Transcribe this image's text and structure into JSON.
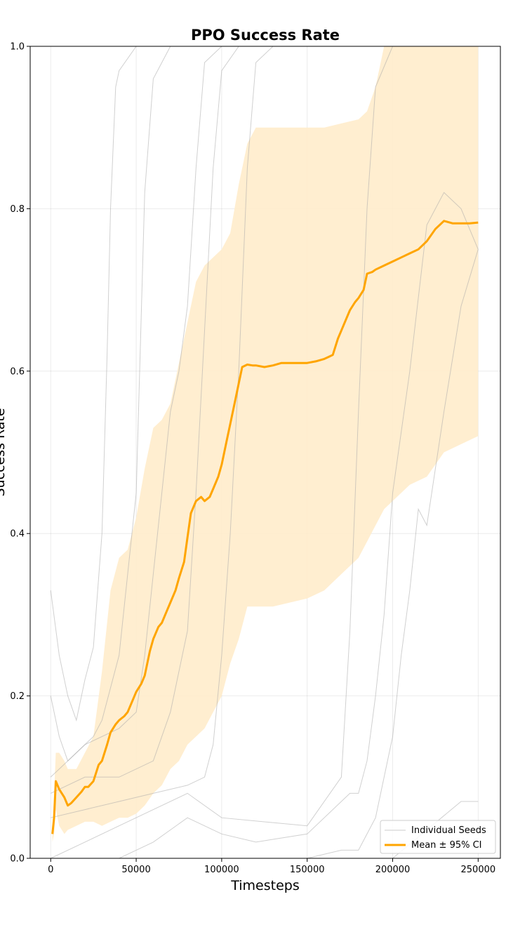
{
  "chart_data": {
    "type": "line",
    "title": "PPO Success Rate",
    "xlabel": "Timesteps",
    "ylabel": "Success Rate",
    "xlim": [
      -12000,
      263000
    ],
    "ylim": [
      0,
      1
    ],
    "xticks": [
      0,
      50000,
      100000,
      150000,
      200000,
      250000
    ],
    "xtick_labels": [
      "0",
      "50000",
      "100000",
      "150000",
      "200000",
      "250000"
    ],
    "yticks": [
      0,
      0.2,
      0.4,
      0.6,
      0.8,
      1.0
    ],
    "ytick_labels": [
      "0.0",
      "0.2",
      "0.4",
      "0.6",
      "0.8",
      "1.0"
    ],
    "grid": true,
    "legend": {
      "position": "lower-right",
      "entries": [
        "Individual Seeds",
        "Mean ± 95% CI"
      ]
    },
    "colors": {
      "mean": "#ffa500",
      "ci": "#ffeccb",
      "seeds": "#a9a9a9"
    },
    "mean": {
      "name": "Mean ± 95% CI",
      "x": [
        1000,
        2000,
        3000,
        5000,
        8000,
        10000,
        12000,
        15000,
        18000,
        20000,
        22000,
        25000,
        28000,
        30000,
        33000,
        35000,
        38000,
        40000,
        43000,
        45000,
        48000,
        50000,
        53000,
        55000,
        58000,
        60000,
        63000,
        65000,
        68000,
        70000,
        73000,
        75000,
        78000,
        80000,
        82000,
        85000,
        88000,
        90000,
        93000,
        95000,
        98000,
        100000,
        103000,
        105000,
        108000,
        110000,
        112000,
        115000,
        118000,
        120000,
        125000,
        130000,
        135000,
        140000,
        145000,
        150000,
        155000,
        160000,
        163000,
        165000,
        168000,
        170000,
        173000,
        175000,
        178000,
        180000,
        183000,
        185000,
        188000,
        190000,
        195000,
        200000,
        205000,
        210000,
        215000,
        220000,
        225000,
        230000,
        235000,
        240000,
        245000,
        250000
      ],
      "y": [
        0.03,
        0.05,
        0.095,
        0.085,
        0.075,
        0.065,
        0.068,
        0.075,
        0.082,
        0.088,
        0.088,
        0.095,
        0.115,
        0.12,
        0.14,
        0.155,
        0.165,
        0.17,
        0.175,
        0.18,
        0.195,
        0.205,
        0.215,
        0.225,
        0.255,
        0.27,
        0.285,
        0.29,
        0.305,
        0.315,
        0.33,
        0.345,
        0.365,
        0.395,
        0.425,
        0.44,
        0.445,
        0.44,
        0.445,
        0.455,
        0.47,
        0.485,
        0.515,
        0.535,
        0.565,
        0.585,
        0.605,
        0.608,
        0.607,
        0.607,
        0.605,
        0.607,
        0.61,
        0.61,
        0.61,
        0.61,
        0.612,
        0.615,
        0.618,
        0.62,
        0.64,
        0.65,
        0.665,
        0.675,
        0.685,
        0.69,
        0.7,
        0.72,
        0.722,
        0.725,
        0.73,
        0.735,
        0.74,
        0.745,
        0.75,
        0.76,
        0.775,
        0.785,
        0.782,
        0.782,
        0.782,
        0.783
      ]
    },
    "ci_band": {
      "x": [
        1000,
        2000,
        3000,
        5000,
        8000,
        10000,
        15000,
        20000,
        25000,
        30000,
        35000,
        40000,
        45000,
        50000,
        55000,
        60000,
        65000,
        70000,
        75000,
        80000,
        85000,
        90000,
        95000,
        100000,
        105000,
        110000,
        115000,
        120000,
        130000,
        140000,
        150000,
        160000,
        170000,
        180000,
        185000,
        190000,
        195000,
        200000,
        210000,
        220000,
        230000,
        240000,
        250000
      ],
      "lower": [
        0.02,
        0.03,
        0.06,
        0.04,
        0.03,
        0.035,
        0.04,
        0.045,
        0.045,
        0.04,
        0.045,
        0.05,
        0.05,
        0.055,
        0.065,
        0.08,
        0.09,
        0.11,
        0.12,
        0.14,
        0.15,
        0.16,
        0.18,
        0.2,
        0.24,
        0.27,
        0.31,
        0.31,
        0.31,
        0.315,
        0.32,
        0.33,
        0.35,
        0.37,
        0.39,
        0.41,
        0.43,
        0.44,
        0.46,
        0.47,
        0.5,
        0.51,
        0.52
      ],
      "upper": [
        0.04,
        0.08,
        0.13,
        0.13,
        0.12,
        0.11,
        0.11,
        0.13,
        0.15,
        0.23,
        0.33,
        0.37,
        0.38,
        0.42,
        0.48,
        0.53,
        0.54,
        0.56,
        0.61,
        0.66,
        0.71,
        0.73,
        0.74,
        0.75,
        0.77,
        0.83,
        0.88,
        0.9,
        0.9,
        0.9,
        0.9,
        0.9,
        0.905,
        0.91,
        0.92,
        0.95,
        1.0,
        1.0,
        1.0,
        1.0,
        1.0,
        1.0,
        1.0
      ]
    },
    "seeds": [
      {
        "x": [
          0,
          5000,
          10000,
          15000,
          20000,
          25000,
          30000,
          33000,
          35000,
          38000,
          40000,
          50000,
          60000,
          80000,
          250000
        ],
        "y": [
          0.33,
          0.25,
          0.2,
          0.17,
          0.22,
          0.26,
          0.4,
          0.62,
          0.8,
          0.95,
          0.97,
          1.0,
          1.0,
          1.0,
          1.0
        ]
      },
      {
        "x": [
          0,
          5000,
          10000,
          15000,
          20000,
          25000,
          30000,
          40000,
          50000,
          55000,
          60000,
          65000,
          70000,
          80000,
          250000
        ],
        "y": [
          0.2,
          0.15,
          0.12,
          0.13,
          0.14,
          0.15,
          0.17,
          0.25,
          0.45,
          0.82,
          0.96,
          0.98,
          1.0,
          1.0,
          1.0
        ]
      },
      {
        "x": [
          0,
          10000,
          20000,
          30000,
          40000,
          50000,
          55000,
          60000,
          65000,
          70000,
          75000,
          80000,
          85000,
          90000,
          100000,
          250000
        ],
        "y": [
          0.1,
          0.12,
          0.14,
          0.15,
          0.16,
          0.18,
          0.25,
          0.35,
          0.45,
          0.55,
          0.6,
          0.68,
          0.85,
          0.98,
          1.0,
          1.0
        ]
      },
      {
        "x": [
          0,
          20000,
          40000,
          60000,
          70000,
          80000,
          85000,
          90000,
          95000,
          100000,
          110000,
          250000
        ],
        "y": [
          0.08,
          0.1,
          0.1,
          0.12,
          0.18,
          0.28,
          0.45,
          0.65,
          0.85,
          0.97,
          1.0,
          1.0
        ]
      },
      {
        "x": [
          0,
          20000,
          40000,
          60000,
          80000,
          90000,
          95000,
          100000,
          105000,
          110000,
          115000,
          120000,
          130000,
          250000
        ],
        "y": [
          0.05,
          0.06,
          0.07,
          0.08,
          0.09,
          0.1,
          0.14,
          0.25,
          0.4,
          0.6,
          0.85,
          0.98,
          1.0,
          1.0
        ]
      },
      {
        "x": [
          0,
          20000,
          40000,
          60000,
          80000,
          100000,
          150000,
          170000,
          175000,
          180000,
          185000,
          190000,
          200000,
          250000
        ],
        "y": [
          0.0,
          0.02,
          0.04,
          0.06,
          0.08,
          0.05,
          0.04,
          0.1,
          0.28,
          0.55,
          0.8,
          0.95,
          1.0,
          1.0
        ]
      },
      {
        "x": [
          0,
          20000,
          40000,
          60000,
          80000,
          100000,
          120000,
          150000,
          175000,
          180000,
          185000,
          190000,
          195000,
          200000,
          210000,
          220000,
          230000,
          240000,
          250000
        ],
        "y": [
          0.0,
          0.0,
          0.0,
          0.02,
          0.05,
          0.03,
          0.02,
          0.03,
          0.08,
          0.08,
          0.12,
          0.2,
          0.3,
          0.45,
          0.6,
          0.78,
          0.82,
          0.8,
          0.75
        ]
      },
      {
        "x": [
          0,
          20000,
          50000,
          100000,
          150000,
          170000,
          180000,
          190000,
          200000,
          205000,
          210000,
          215000,
          220000,
          230000,
          240000,
          250000
        ],
        "y": [
          0.0,
          0.0,
          0.0,
          0.0,
          0.0,
          0.01,
          0.01,
          0.05,
          0.15,
          0.25,
          0.33,
          0.43,
          0.41,
          0.55,
          0.68,
          0.75
        ]
      },
      {
        "x": [
          0,
          50000,
          100000,
          150000,
          200000,
          240000,
          250000
        ],
        "y": [
          0.0,
          0.0,
          0.0,
          0.0,
          0.0,
          0.07,
          0.07
        ]
      }
    ]
  }
}
